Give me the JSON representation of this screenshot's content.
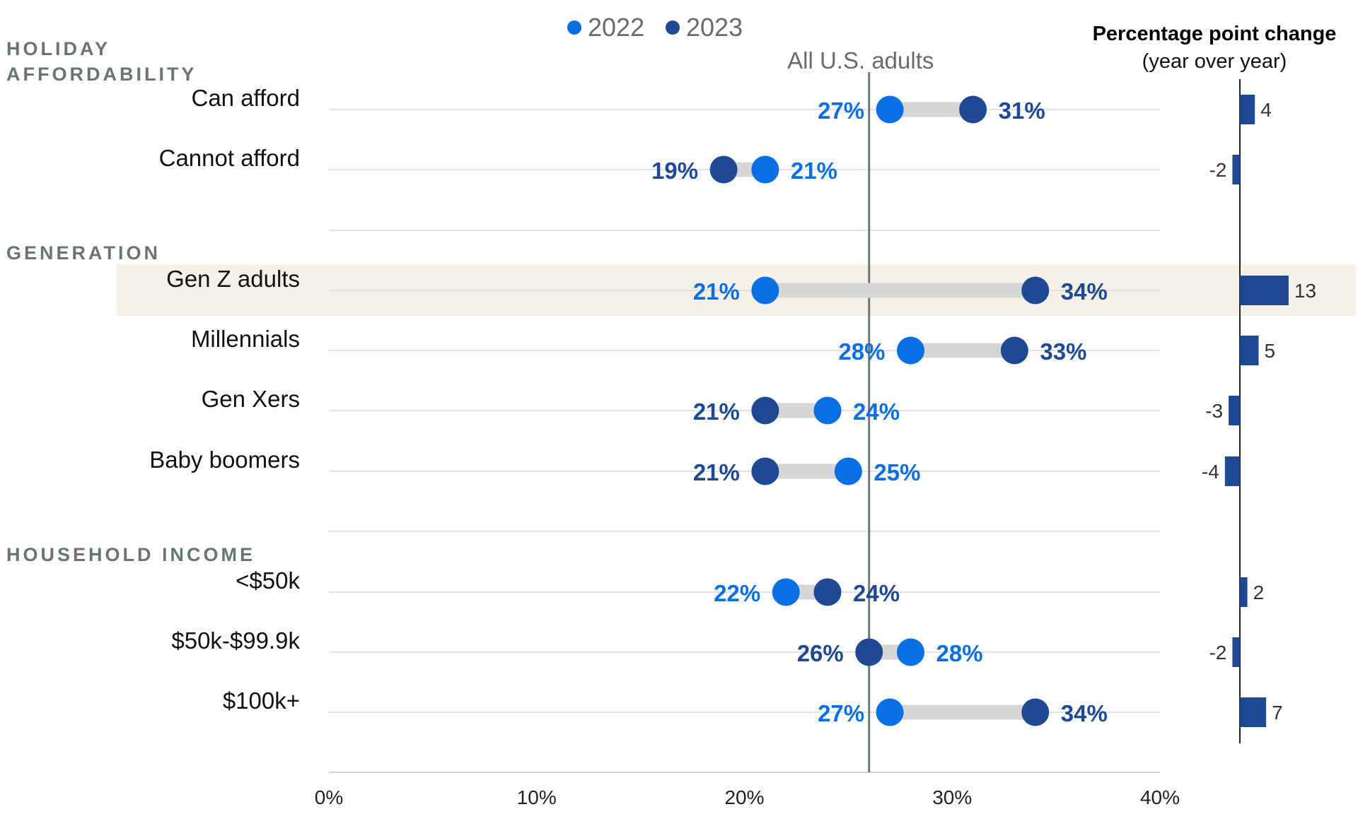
{
  "chart_data": {
    "type": "dumbbell",
    "xlim": [
      0,
      40
    ],
    "x_ticks": [
      "0%",
      "10%",
      "20%",
      "30%",
      "40%"
    ],
    "legend": [
      {
        "label": "2022",
        "color": "#0a6fe3"
      },
      {
        "label": "2023",
        "color": "#1f4a93"
      }
    ],
    "reference": {
      "label": "All U.S. adults",
      "value": 26
    },
    "change_panel": {
      "title": "Percentage point change",
      "subtitle": "(year over year)"
    },
    "groups": [
      {
        "label": "HOLIDAY AFFORDABILITY",
        "rows": [
          {
            "label": "Can afford",
            "v2022": 27,
            "v2023": 31,
            "l2022": "27%",
            "l2023": "31%",
            "change": 4,
            "change_label": "4"
          },
          {
            "label": "Cannot afford",
            "v2022": 21,
            "v2023": 19,
            "l2022": "21%",
            "l2023": "19%",
            "change": -2,
            "change_label": "-2"
          }
        ]
      },
      {
        "label": "GENERATION",
        "rows": [
          {
            "label": "Gen Z adults",
            "v2022": 21,
            "v2023": 34,
            "l2022": "21%",
            "l2023": "34%",
            "change": 13,
            "change_label": "13",
            "highlight": true
          },
          {
            "label": "Millennials",
            "v2022": 28,
            "v2023": 33,
            "l2022": "28%",
            "l2023": "33%",
            "change": 5,
            "change_label": "5"
          },
          {
            "label": "Gen Xers",
            "v2022": 24,
            "v2023": 21,
            "l2022": "24%",
            "l2023": "21%",
            "change": -3,
            "change_label": "-3"
          },
          {
            "label": "Baby boomers",
            "v2022": 25,
            "v2023": 21,
            "l2022": "25%",
            "l2023": "21%",
            "change": -4,
            "change_label": "-4"
          }
        ]
      },
      {
        "label": "HOUSEHOLD INCOME",
        "rows": [
          {
            "label": "<$50k",
            "v2022": 22,
            "v2023": 24,
            "l2022": "22%",
            "l2023": "24%",
            "change": 2,
            "change_label": "2"
          },
          {
            "label": "$50k-$99.9k",
            "v2022": 28,
            "v2023": 26,
            "l2022": "28%",
            "l2023": "26%",
            "change": -2,
            "change_label": "-2"
          },
          {
            "label": "$100k+",
            "v2022": 27,
            "v2023": 34,
            "l2022": "27%",
            "l2023": "34%",
            "change": 7,
            "change_label": "7"
          }
        ]
      }
    ]
  }
}
